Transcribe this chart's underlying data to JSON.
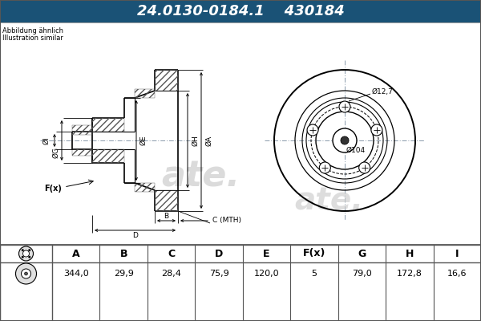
{
  "part_number": "24.0130-0184.1",
  "ref_number": "430184",
  "subtitle1": "Abbildung ähnlich",
  "subtitle2": "Illustration similar",
  "header_bg": "#1a5276",
  "header_text_color": "#ffffff",
  "bg_color": "#c8c8c8",
  "drawing_bg": "#ffffff",
  "table_bg": "#ffffff",
  "table_headers": [
    "A",
    "B",
    "C",
    "D",
    "E",
    "F(x)",
    "G",
    "H",
    "I"
  ],
  "table_values": [
    "344,0",
    "29,9",
    "28,4",
    "75,9",
    "120,0",
    "5",
    "79,0",
    "172,8",
    "16,6"
  ]
}
